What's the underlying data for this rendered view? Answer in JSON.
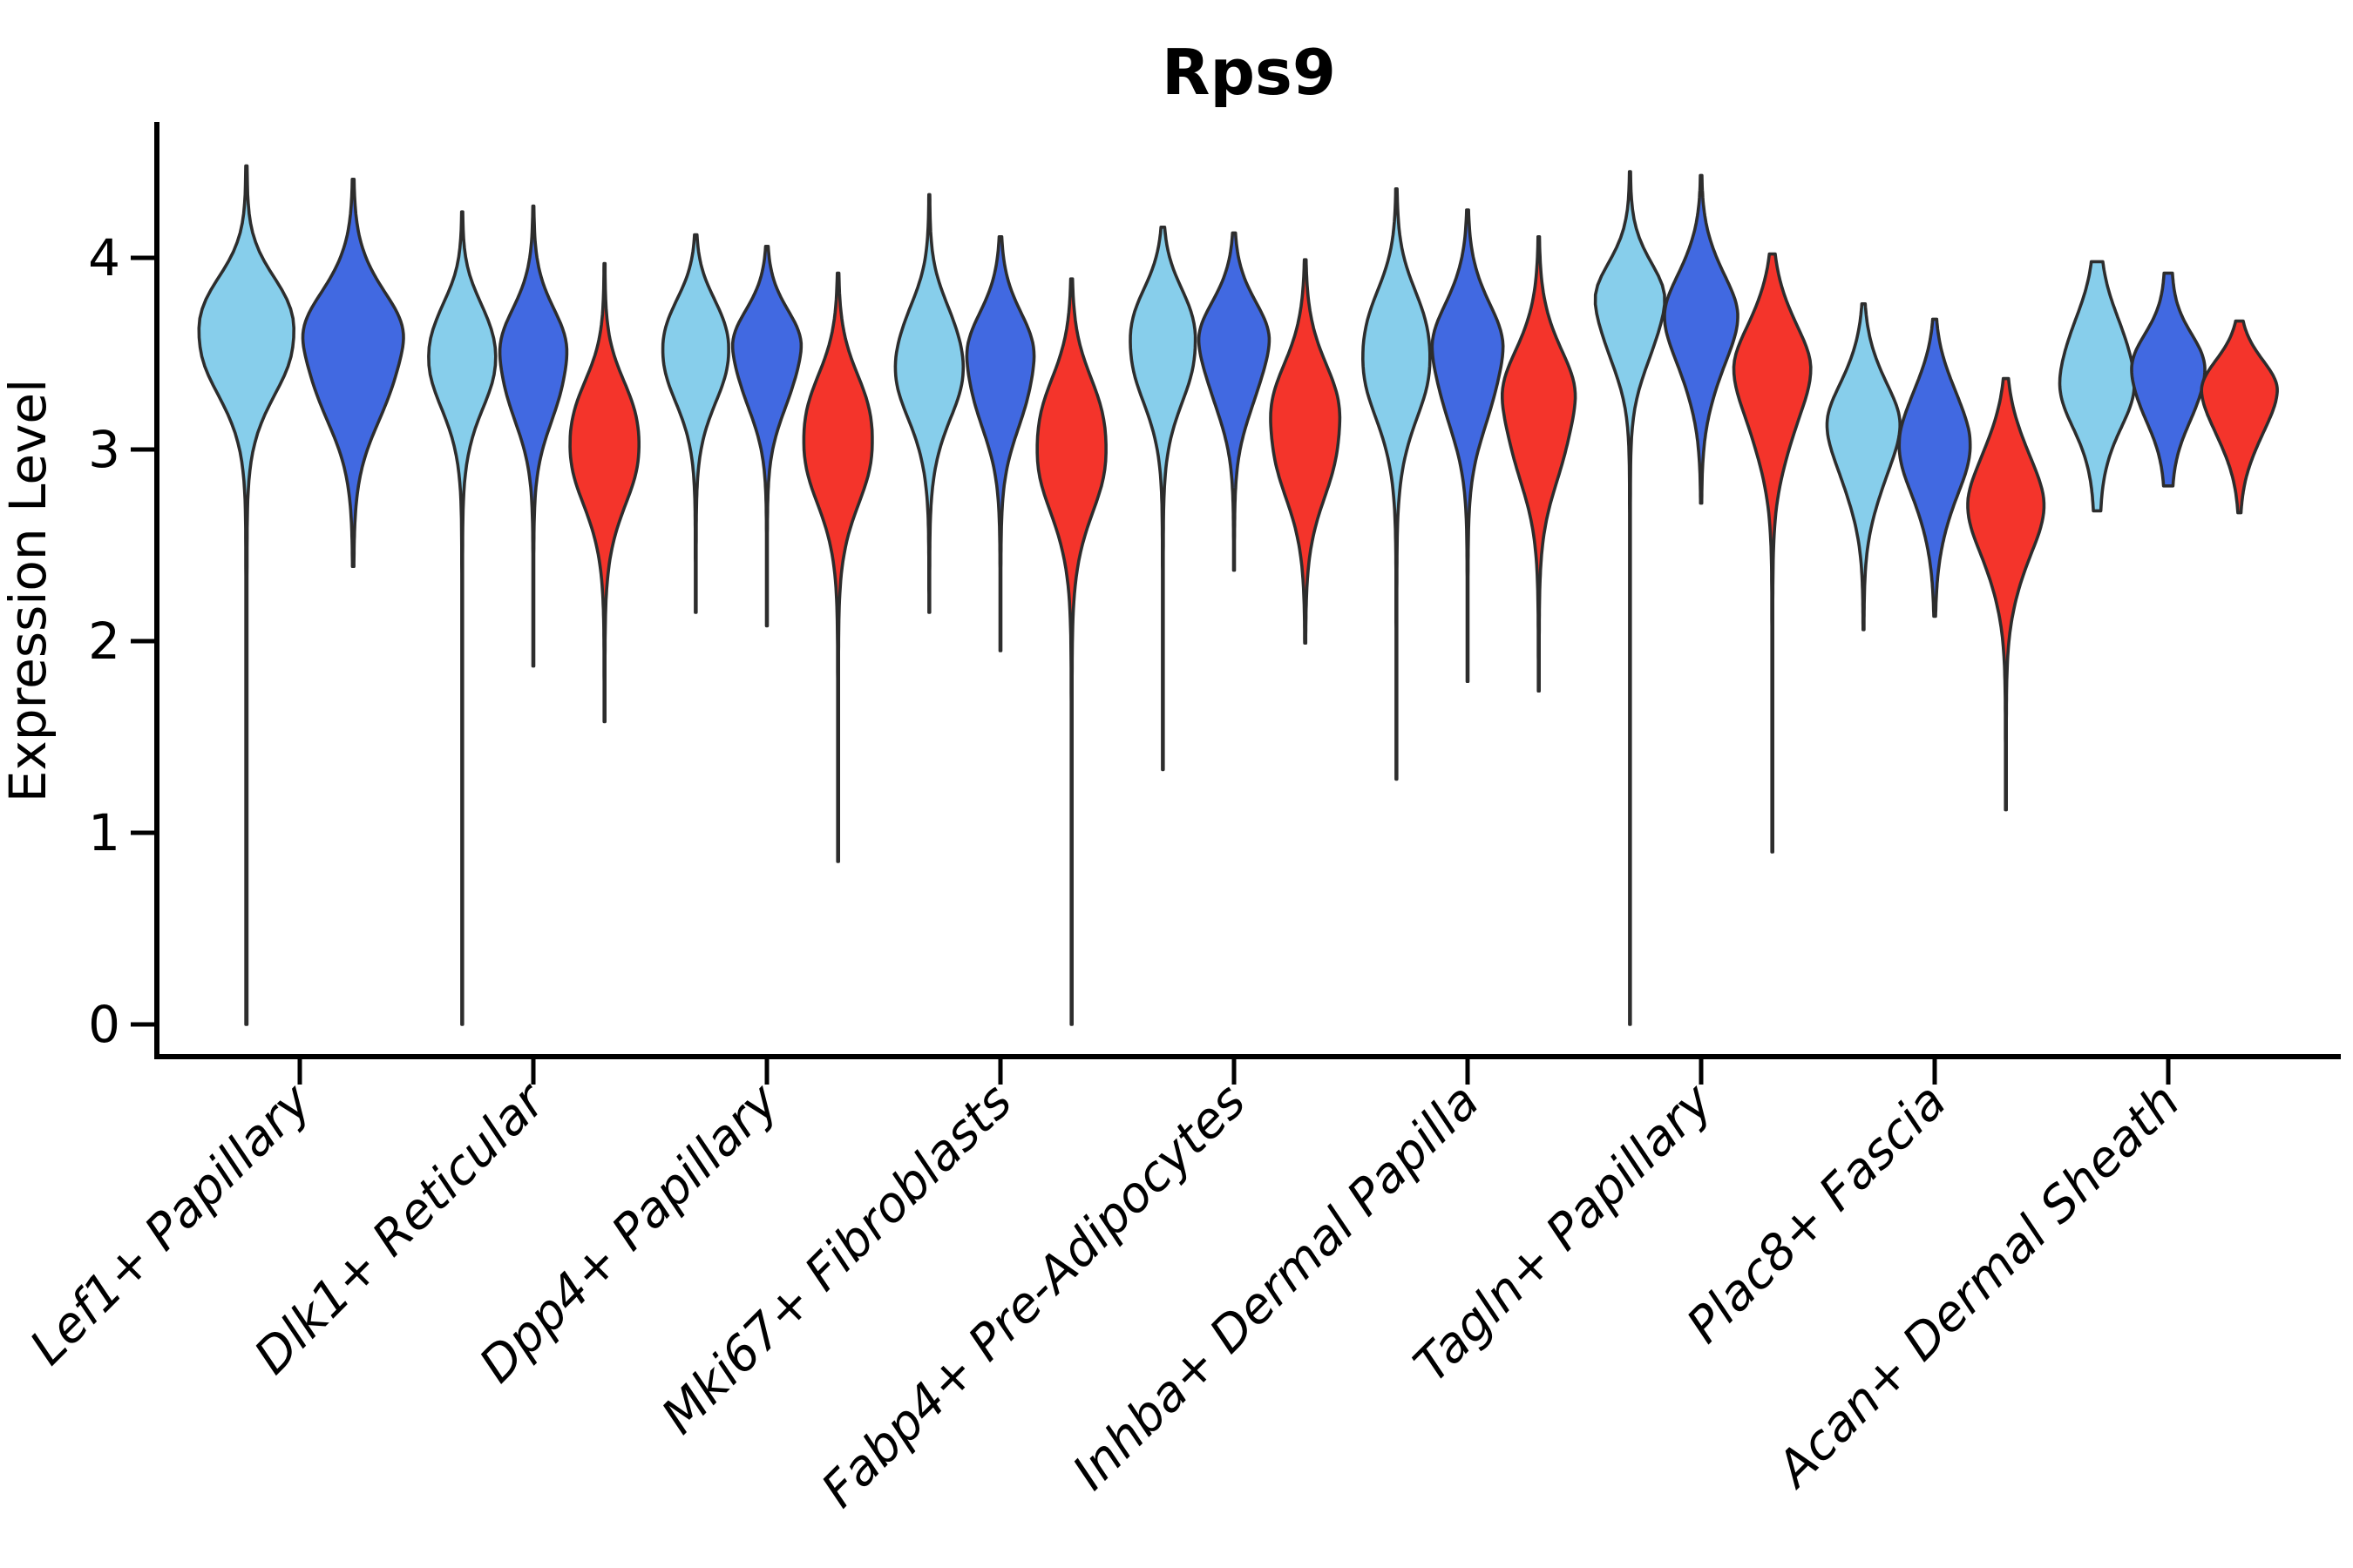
{
  "page": {
    "background": "#FFFFFF"
  },
  "chart_data": {
    "type": "violin",
    "title": "Rps9",
    "ylabel": "Expression Level",
    "xlabel": "",
    "ylim": [
      0,
      4.7
    ],
    "yticks": [
      "0",
      "1",
      "2",
      "3",
      "4"
    ],
    "grid": false,
    "legend": "none",
    "categories": [
      "Lef1+ Papillary",
      "Dlk1+ Reticular",
      "Dpp4+ Papillary",
      "Mki67+ Fibroblasts",
      "Fabp4+ Pre-Adipocytes",
      "Inhba+ Dermal Papilla",
      "Tagln+ Papillary",
      "Plac8+ Fascia",
      "Acan+ Dermal Sheath"
    ],
    "series": [
      {
        "name": "light-blue",
        "color": "#87CEEB"
      },
      {
        "name": "dark-blue",
        "color": "#4169E1"
      },
      {
        "name": "red",
        "color": "#F4342B"
      }
    ],
    "outline_color": "#2D2D2D",
    "violins": [
      {
        "category": 0,
        "series": 0,
        "min": 0.0,
        "max": 4.48,
        "mode": 3.63,
        "sigma_up": 0.24,
        "sigma_down": 0.31,
        "rel_width": 1.43,
        "tail_w": 0.012
      },
      {
        "category": 0,
        "series": 1,
        "min": 2.39,
        "max": 4.41,
        "mode": 3.55,
        "sigma_up": 0.27,
        "sigma_down": 0.34,
        "rel_width": 1.43,
        "tail_w": 0.012
      },
      {
        "category": 1,
        "series": 0,
        "min": 0.0,
        "max": 4.24,
        "mode": 3.52,
        "sigma_up": 0.22,
        "sigma_down": 0.29,
        "rel_width": 0.98,
        "tail_w": 0.012
      },
      {
        "category": 1,
        "series": 1,
        "min": 1.87,
        "max": 4.27,
        "mode": 3.48,
        "sigma_up": 0.24,
        "sigma_down": 0.29,
        "rel_width": 0.98,
        "tail_w": 0.012
      },
      {
        "category": 1,
        "series": 2,
        "min": 1.58,
        "max": 3.97,
        "mode": 3.06,
        "sigma_up": 0.26,
        "sigma_down": 0.32,
        "rel_width": 1.03,
        "tail_w": 0.012
      },
      {
        "category": 2,
        "series": 0,
        "min": 2.15,
        "max": 4.12,
        "mode": 3.55,
        "sigma_up": 0.21,
        "sigma_down": 0.28,
        "rel_width": 0.98,
        "tail_w": 0.012
      },
      {
        "category": 2,
        "series": 1,
        "min": 2.08,
        "max": 4.06,
        "mode": 3.52,
        "sigma_up": 0.2,
        "sigma_down": 0.27,
        "rel_width": 0.98,
        "tail_w": 0.012
      },
      {
        "category": 2,
        "series": 2,
        "min": 0.85,
        "max": 3.92,
        "mode": 3.07,
        "sigma_up": 0.28,
        "sigma_down": 0.32,
        "rel_width": 1.03,
        "tail_w": 0.012
      },
      {
        "category": 3,
        "series": 0,
        "min": 2.15,
        "max": 4.33,
        "mode": 3.47,
        "sigma_up": 0.25,
        "sigma_down": 0.3,
        "rel_width": 0.98,
        "tail_w": 0.012
      },
      {
        "category": 3,
        "series": 1,
        "min": 1.95,
        "max": 4.11,
        "mode": 3.46,
        "sigma_up": 0.24,
        "sigma_down": 0.3,
        "rel_width": 0.98,
        "tail_w": 0.012
      },
      {
        "category": 3,
        "series": 2,
        "min": 0.0,
        "max": 3.89,
        "mode": 3.04,
        "sigma_up": 0.29,
        "sigma_down": 0.34,
        "rel_width": 1.03,
        "tail_w": 0.012
      },
      {
        "category": 4,
        "series": 0,
        "min": 1.33,
        "max": 4.16,
        "mode": 3.58,
        "sigma_up": 0.23,
        "sigma_down": 0.3,
        "rel_width": 0.98,
        "tail_w": 0.012
      },
      {
        "category": 4,
        "series": 1,
        "min": 2.37,
        "max": 4.13,
        "mode": 3.55,
        "sigma_up": 0.22,
        "sigma_down": 0.29,
        "rel_width": 0.98,
        "tail_w": 0.012
      },
      {
        "category": 4,
        "series": 2,
        "min": 1.99,
        "max": 3.99,
        "mode": 3.13,
        "sigma_up": 0.29,
        "sigma_down": 0.33,
        "rel_width": 1.03,
        "tail_w": 0.012
      },
      {
        "category": 5,
        "series": 0,
        "min": 1.28,
        "max": 4.36,
        "mode": 3.52,
        "sigma_up": 0.27,
        "sigma_down": 0.33,
        "rel_width": 1.0,
        "tail_w": 0.012
      },
      {
        "category": 5,
        "series": 1,
        "min": 1.79,
        "max": 4.25,
        "mode": 3.5,
        "sigma_up": 0.26,
        "sigma_down": 0.32,
        "rel_width": 1.0,
        "tail_w": 0.012
      },
      {
        "category": 5,
        "series": 2,
        "min": 1.74,
        "max": 4.11,
        "mode": 3.24,
        "sigma_up": 0.28,
        "sigma_down": 0.34,
        "rel_width": 1.03,
        "tail_w": 0.012
      },
      {
        "category": 6,
        "series": 0,
        "min": 0.0,
        "max": 4.45,
        "mode": 3.76,
        "sigma_up": 0.21,
        "sigma_down": 0.27,
        "rel_width": 0.98,
        "tail_w": 0.012
      },
      {
        "category": 6,
        "series": 1,
        "min": 2.72,
        "max": 4.43,
        "mode": 3.7,
        "sigma_up": 0.24,
        "sigma_down": 0.3,
        "rel_width": 0.98,
        "tail_w": 0.012
      },
      {
        "category": 6,
        "series": 2,
        "min": 0.9,
        "max": 4.02,
        "mode": 3.42,
        "sigma_up": 0.26,
        "sigma_down": 0.34,
        "rel_width": 1.03,
        "tail_w": 0.012
      },
      {
        "category": 7,
        "series": 0,
        "min": 2.06,
        "max": 3.76,
        "mode": 3.12,
        "sigma_up": 0.25,
        "sigma_down": 0.3,
        "rel_width": 0.98,
        "tail_w": 0.012
      },
      {
        "category": 7,
        "series": 1,
        "min": 2.13,
        "max": 3.68,
        "mode": 3.06,
        "sigma_up": 0.25,
        "sigma_down": 0.32,
        "rel_width": 0.98,
        "tail_w": 0.012
      },
      {
        "category": 7,
        "series": 2,
        "min": 1.12,
        "max": 3.37,
        "mode": 2.73,
        "sigma_up": 0.27,
        "sigma_down": 0.32,
        "rel_width": 1.03,
        "tail_w": 0.012
      },
      {
        "category": 8,
        "series": 0,
        "min": 2.68,
        "max": 3.98,
        "mode": 3.38,
        "sigma_up": 0.27,
        "sigma_down": 0.26,
        "rel_width": 1.0,
        "tail_w": 0.08
      },
      {
        "category": 8,
        "series": 1,
        "min": 2.81,
        "max": 3.92,
        "mode": 3.4,
        "sigma_up": 0.19,
        "sigma_down": 0.23,
        "rel_width": 0.98,
        "tail_w": 0.1
      },
      {
        "category": 8,
        "series": 2,
        "min": 2.67,
        "max": 3.67,
        "mode": 3.3,
        "sigma_up": 0.17,
        "sigma_down": 0.24,
        "rel_width": 1.03,
        "tail_w": 0.012
      }
    ]
  }
}
